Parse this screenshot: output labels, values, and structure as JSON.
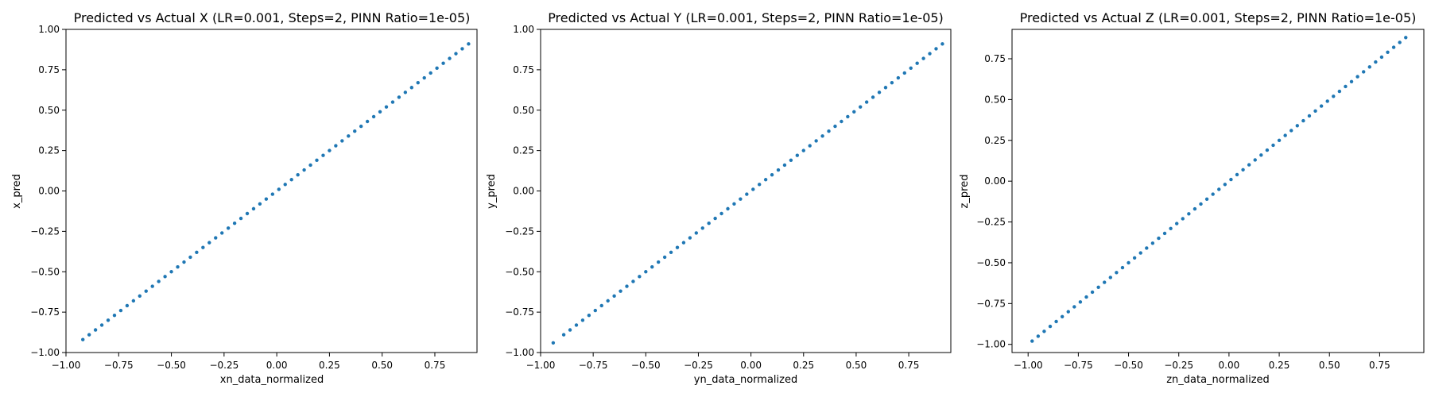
{
  "chart_data": [
    {
      "type": "scatter",
      "title": "Predicted vs Actual X (LR=0.001, Steps=2, PINN Ratio=1e-05)",
      "xlabel": "xn_data_normalized",
      "ylabel": "x_pred",
      "xlim": [
        -1.0,
        0.95
      ],
      "ylim": [
        -1.0,
        1.0
      ],
      "xticks": [
        -1.0,
        -0.75,
        -0.5,
        -0.25,
        0.0,
        0.25,
        0.5,
        0.75
      ],
      "yticks": [
        -1.0,
        -0.75,
        -0.5,
        -0.25,
        0.0,
        0.25,
        0.5,
        0.75,
        1.0
      ],
      "xtick_labels": [
        "−1.00",
        "−0.75",
        "−0.50",
        "−0.25",
        "0.00",
        "0.25",
        "0.50",
        "0.75"
      ],
      "ytick_labels": [
        "−1.00",
        "−0.75",
        "−0.50",
        "−0.25",
        "0.00",
        "0.25",
        "0.50",
        "0.75",
        "1.00"
      ],
      "grid": false,
      "series": [
        {
          "color": "#1f77b4",
          "points": [
            [
              -0.92,
              -0.92
            ],
            [
              -0.89,
              -0.89
            ],
            [
              -0.86,
              -0.86
            ],
            [
              -0.83,
              -0.83
            ],
            [
              -0.8,
              -0.8
            ],
            [
              -0.77,
              -0.77
            ],
            [
              -0.74,
              -0.74
            ],
            [
              -0.71,
              -0.71
            ],
            [
              -0.68,
              -0.68
            ],
            [
              -0.65,
              -0.65
            ],
            [
              -0.62,
              -0.62
            ],
            [
              -0.59,
              -0.59
            ],
            [
              -0.56,
              -0.56
            ],
            [
              -0.53,
              -0.53
            ],
            [
              -0.5,
              -0.5
            ],
            [
              -0.47,
              -0.47
            ],
            [
              -0.44,
              -0.44
            ],
            [
              -0.41,
              -0.41
            ],
            [
              -0.38,
              -0.38
            ],
            [
              -0.35,
              -0.35
            ],
            [
              -0.32,
              -0.32
            ],
            [
              -0.29,
              -0.29
            ],
            [
              -0.26,
              -0.26
            ],
            [
              -0.23,
              -0.23
            ],
            [
              -0.2,
              -0.2
            ],
            [
              -0.17,
              -0.17
            ],
            [
              -0.14,
              -0.14
            ],
            [
              -0.11,
              -0.11
            ],
            [
              -0.08,
              -0.08
            ],
            [
              -0.05,
              -0.05
            ],
            [
              -0.02,
              -0.02
            ],
            [
              0.01,
              0.01
            ],
            [
              0.04,
              0.04
            ],
            [
              0.07,
              0.07
            ],
            [
              0.1,
              0.1
            ],
            [
              0.13,
              0.13
            ],
            [
              0.16,
              0.16
            ],
            [
              0.19,
              0.19
            ],
            [
              0.22,
              0.22
            ],
            [
              0.25,
              0.25
            ],
            [
              0.28,
              0.28
            ],
            [
              0.31,
              0.31
            ],
            [
              0.34,
              0.34
            ],
            [
              0.37,
              0.37
            ],
            [
              0.4,
              0.4
            ],
            [
              0.43,
              0.43
            ],
            [
              0.46,
              0.46
            ],
            [
              0.49,
              0.49
            ],
            [
              0.52,
              0.52
            ],
            [
              0.55,
              0.55
            ],
            [
              0.58,
              0.58
            ],
            [
              0.61,
              0.61
            ],
            [
              0.64,
              0.64
            ],
            [
              0.67,
              0.67
            ],
            [
              0.7,
              0.7
            ],
            [
              0.73,
              0.73
            ],
            [
              0.76,
              0.76
            ],
            [
              0.79,
              0.79
            ],
            [
              0.82,
              0.82
            ],
            [
              0.85,
              0.85
            ],
            [
              0.88,
              0.88
            ],
            [
              0.91,
              0.91
            ]
          ]
        }
      ]
    },
    {
      "type": "scatter",
      "title": "Predicted vs Actual Y (LR=0.001, Steps=2, PINN Ratio=1e-05)",
      "xlabel": "yn_data_normalized",
      "ylabel": "y_pred",
      "xlim": [
        -1.0,
        0.95
      ],
      "ylim": [
        -1.0,
        1.0
      ],
      "xticks": [
        -1.0,
        -0.75,
        -0.5,
        -0.25,
        0.0,
        0.25,
        0.5,
        0.75
      ],
      "yticks": [
        -1.0,
        -0.75,
        -0.5,
        -0.25,
        0.0,
        0.25,
        0.5,
        0.75,
        1.0
      ],
      "xtick_labels": [
        "−1.00",
        "−0.75",
        "−0.50",
        "−0.25",
        "0.00",
        "0.25",
        "0.50",
        "0.75"
      ],
      "ytick_labels": [
        "−1.00",
        "−0.75",
        "−0.50",
        "−0.25",
        "0.00",
        "0.25",
        "0.50",
        "0.75",
        "1.00"
      ],
      "grid": false,
      "series": [
        {
          "color": "#1f77b4",
          "points": [
            [
              -0.94,
              -0.94
            ],
            [
              -0.89,
              -0.89
            ],
            [
              -0.86,
              -0.86
            ],
            [
              -0.83,
              -0.83
            ],
            [
              -0.8,
              -0.8
            ],
            [
              -0.77,
              -0.77
            ],
            [
              -0.74,
              -0.74
            ],
            [
              -0.71,
              -0.71
            ],
            [
              -0.68,
              -0.68
            ],
            [
              -0.65,
              -0.65
            ],
            [
              -0.62,
              -0.62
            ],
            [
              -0.59,
              -0.59
            ],
            [
              -0.56,
              -0.56
            ],
            [
              -0.53,
              -0.53
            ],
            [
              -0.5,
              -0.5
            ],
            [
              -0.47,
              -0.47
            ],
            [
              -0.44,
              -0.44
            ],
            [
              -0.41,
              -0.41
            ],
            [
              -0.38,
              -0.38
            ],
            [
              -0.35,
              -0.35
            ],
            [
              -0.32,
              -0.32
            ],
            [
              -0.29,
              -0.29
            ],
            [
              -0.26,
              -0.26
            ],
            [
              -0.23,
              -0.23
            ],
            [
              -0.2,
              -0.2
            ],
            [
              -0.17,
              -0.17
            ],
            [
              -0.14,
              -0.14
            ],
            [
              -0.11,
              -0.11
            ],
            [
              -0.08,
              -0.08
            ],
            [
              -0.05,
              -0.05
            ],
            [
              -0.02,
              -0.02
            ],
            [
              0.01,
              0.01
            ],
            [
              0.04,
              0.04
            ],
            [
              0.07,
              0.07
            ],
            [
              0.1,
              0.1
            ],
            [
              0.13,
              0.13
            ],
            [
              0.16,
              0.16
            ],
            [
              0.19,
              0.19
            ],
            [
              0.22,
              0.22
            ],
            [
              0.25,
              0.25
            ],
            [
              0.28,
              0.28
            ],
            [
              0.31,
              0.31
            ],
            [
              0.34,
              0.34
            ],
            [
              0.37,
              0.37
            ],
            [
              0.4,
              0.4
            ],
            [
              0.43,
              0.43
            ],
            [
              0.46,
              0.46
            ],
            [
              0.49,
              0.49
            ],
            [
              0.52,
              0.52
            ],
            [
              0.55,
              0.55
            ],
            [
              0.58,
              0.58
            ],
            [
              0.61,
              0.61
            ],
            [
              0.64,
              0.64
            ],
            [
              0.67,
              0.67
            ],
            [
              0.7,
              0.7
            ],
            [
              0.73,
              0.73
            ],
            [
              0.76,
              0.76
            ],
            [
              0.79,
              0.79
            ],
            [
              0.82,
              0.82
            ],
            [
              0.85,
              0.85
            ],
            [
              0.88,
              0.88
            ],
            [
              0.91,
              0.91
            ]
          ]
        }
      ]
    },
    {
      "type": "scatter",
      "title": "Predicted vs Actual Z (LR=0.001, Steps=2, PINN Ratio=1e-05)",
      "xlabel": "zn_data_normalized",
      "ylabel": "z_pred",
      "xlim": [
        -1.08,
        0.97
      ],
      "ylim": [
        -1.05,
        0.93
      ],
      "xticks": [
        -1.0,
        -0.75,
        -0.5,
        -0.25,
        0.0,
        0.25,
        0.5,
        0.75
      ],
      "yticks": [
        -1.0,
        -0.75,
        -0.5,
        -0.25,
        0.0,
        0.25,
        0.5,
        0.75
      ],
      "xtick_labels": [
        "−1.00",
        "−0.75",
        "−0.50",
        "−0.25",
        "0.00",
        "0.25",
        "0.50",
        "0.75"
      ],
      "ytick_labels": [
        "−1.00",
        "−0.75",
        "−0.50",
        "−0.25",
        "0.00",
        "0.25",
        "0.50",
        "0.75"
      ],
      "grid": false,
      "series": [
        {
          "color": "#1f77b4",
          "points": [
            [
              -0.98,
              -0.98
            ],
            [
              -0.95,
              -0.95
            ],
            [
              -0.92,
              -0.92
            ],
            [
              -0.89,
              -0.89
            ],
            [
              -0.86,
              -0.86
            ],
            [
              -0.83,
              -0.83
            ],
            [
              -0.8,
              -0.8
            ],
            [
              -0.77,
              -0.77
            ],
            [
              -0.74,
              -0.74
            ],
            [
              -0.71,
              -0.71
            ],
            [
              -0.68,
              -0.68
            ],
            [
              -0.65,
              -0.65
            ],
            [
              -0.62,
              -0.62
            ],
            [
              -0.59,
              -0.59
            ],
            [
              -0.56,
              -0.56
            ],
            [
              -0.53,
              -0.53
            ],
            [
              -0.5,
              -0.5
            ],
            [
              -0.47,
              -0.47
            ],
            [
              -0.44,
              -0.44
            ],
            [
              -0.41,
              -0.41
            ],
            [
              -0.38,
              -0.38
            ],
            [
              -0.35,
              -0.35
            ],
            [
              -0.32,
              -0.32
            ],
            [
              -0.29,
              -0.29
            ],
            [
              -0.26,
              -0.26
            ],
            [
              -0.23,
              -0.23
            ],
            [
              -0.2,
              -0.2
            ],
            [
              -0.17,
              -0.17
            ],
            [
              -0.14,
              -0.14
            ],
            [
              -0.11,
              -0.11
            ],
            [
              -0.08,
              -0.08
            ],
            [
              -0.05,
              -0.05
            ],
            [
              -0.02,
              -0.02
            ],
            [
              0.01,
              0.01
            ],
            [
              0.04,
              0.04
            ],
            [
              0.07,
              0.07
            ],
            [
              0.1,
              0.1
            ],
            [
              0.13,
              0.13
            ],
            [
              0.16,
              0.16
            ],
            [
              0.19,
              0.19
            ],
            [
              0.22,
              0.22
            ],
            [
              0.25,
              0.25
            ],
            [
              0.28,
              0.28
            ],
            [
              0.31,
              0.31
            ],
            [
              0.34,
              0.34
            ],
            [
              0.37,
              0.37
            ],
            [
              0.4,
              0.4
            ],
            [
              0.43,
              0.43
            ],
            [
              0.46,
              0.46
            ],
            [
              0.49,
              0.49
            ],
            [
              0.52,
              0.52
            ],
            [
              0.55,
              0.55
            ],
            [
              0.58,
              0.58
            ],
            [
              0.61,
              0.61
            ],
            [
              0.64,
              0.64
            ],
            [
              0.67,
              0.67
            ],
            [
              0.7,
              0.7
            ],
            [
              0.73,
              0.73
            ],
            [
              0.76,
              0.76
            ],
            [
              0.79,
              0.79
            ],
            [
              0.82,
              0.82
            ],
            [
              0.85,
              0.85
            ],
            [
              0.88,
              0.88
            ]
          ]
        }
      ]
    }
  ]
}
